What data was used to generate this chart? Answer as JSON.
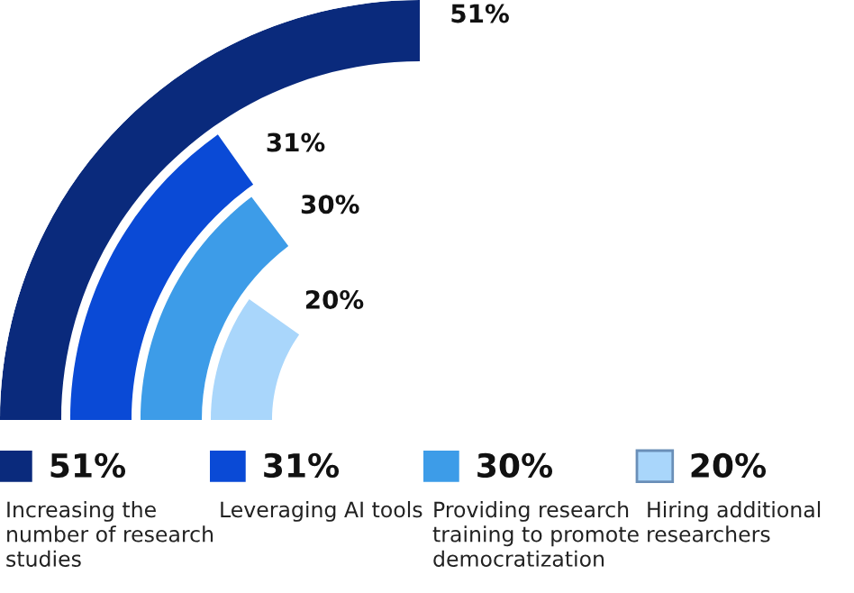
{
  "chart_data": {
    "type": "other",
    "categories": [
      "Increasing the\nnumber of research\nstudies",
      "Leveraging AI tools",
      "Providing research\ntraining to promote\ndemocratization",
      "Hiring additional\nresearchers"
    ],
    "values": [
      51,
      31,
      30,
      20
    ],
    "value_labels": [
      "51%",
      "31%",
      "30%",
      "20%"
    ],
    "colors": [
      "#0a2a7c",
      "#0a4ad6",
      "#3d9ce8",
      "#a9d6fb"
    ]
  }
}
